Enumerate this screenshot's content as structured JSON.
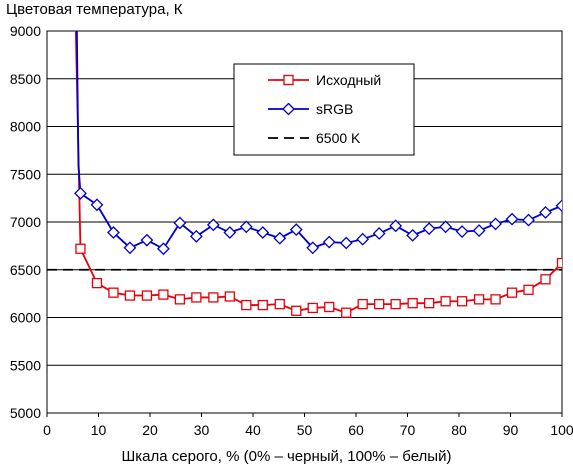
{
  "chart_data": {
    "type": "line",
    "title": "Цветовая температура, К",
    "xlabel": "Шкала серого, % (0% – черный, 100% – белый)",
    "ylabel": "",
    "xlim": [
      0,
      100
    ],
    "ylim": [
      5000,
      9000
    ],
    "xticks": [
      0,
      10,
      20,
      30,
      40,
      50,
      60,
      70,
      80,
      90,
      100
    ],
    "yticks": [
      5000,
      5500,
      6000,
      6500,
      7000,
      7500,
      8000,
      8500,
      9000
    ],
    "grid": "horizontal",
    "legend": "top-center",
    "series": [
      {
        "name": "Исходный",
        "color": "#e8000b",
        "marker": "square",
        "line_only_x": [
          5.6
        ],
        "line_only_y": [
          9000
        ],
        "x": [
          6.5,
          9.7,
          12.9,
          16.1,
          19.4,
          22.6,
          25.8,
          29.0,
          32.3,
          35.5,
          38.7,
          41.9,
          45.2,
          48.4,
          51.6,
          54.8,
          58.1,
          61.3,
          64.5,
          67.7,
          71.0,
          74.2,
          77.4,
          80.6,
          83.9,
          87.1,
          90.3,
          93.5,
          96.8,
          100
        ],
        "y": [
          6720,
          6360,
          6260,
          6230,
          6230,
          6240,
          6190,
          6210,
          6210,
          6220,
          6130,
          6130,
          6140,
          6070,
          6100,
          6110,
          6050,
          6140,
          6140,
          6140,
          6150,
          6150,
          6170,
          6170,
          6190,
          6190,
          6260,
          6290,
          6400,
          6570
        ]
      },
      {
        "name": "sRGB",
        "color": "#0000cc",
        "marker": "diamond",
        "line_only_x": [
          5.8,
          6.1
        ],
        "line_only_y": [
          9000,
          7600
        ],
        "x": [
          6.5,
          9.7,
          12.9,
          16.1,
          19.4,
          22.6,
          25.8,
          29.0,
          32.3,
          35.5,
          38.7,
          41.9,
          45.2,
          48.4,
          51.6,
          54.8,
          58.1,
          61.3,
          64.5,
          67.7,
          71.0,
          74.2,
          77.4,
          80.6,
          83.9,
          87.1,
          90.3,
          93.5,
          96.8,
          100
        ],
        "y": [
          7300,
          7180,
          6890,
          6730,
          6810,
          6720,
          6990,
          6850,
          6970,
          6890,
          6950,
          6890,
          6830,
          6920,
          6730,
          6790,
          6780,
          6820,
          6880,
          6960,
          6860,
          6930,
          6950,
          6900,
          6910,
          6980,
          7030,
          7020,
          7100,
          7170
        ]
      },
      {
        "name": "6500 K",
        "color": "#000000",
        "marker": "none",
        "dashed": true,
        "x": [
          0,
          100
        ],
        "y": [
          6500,
          6500
        ]
      }
    ]
  }
}
